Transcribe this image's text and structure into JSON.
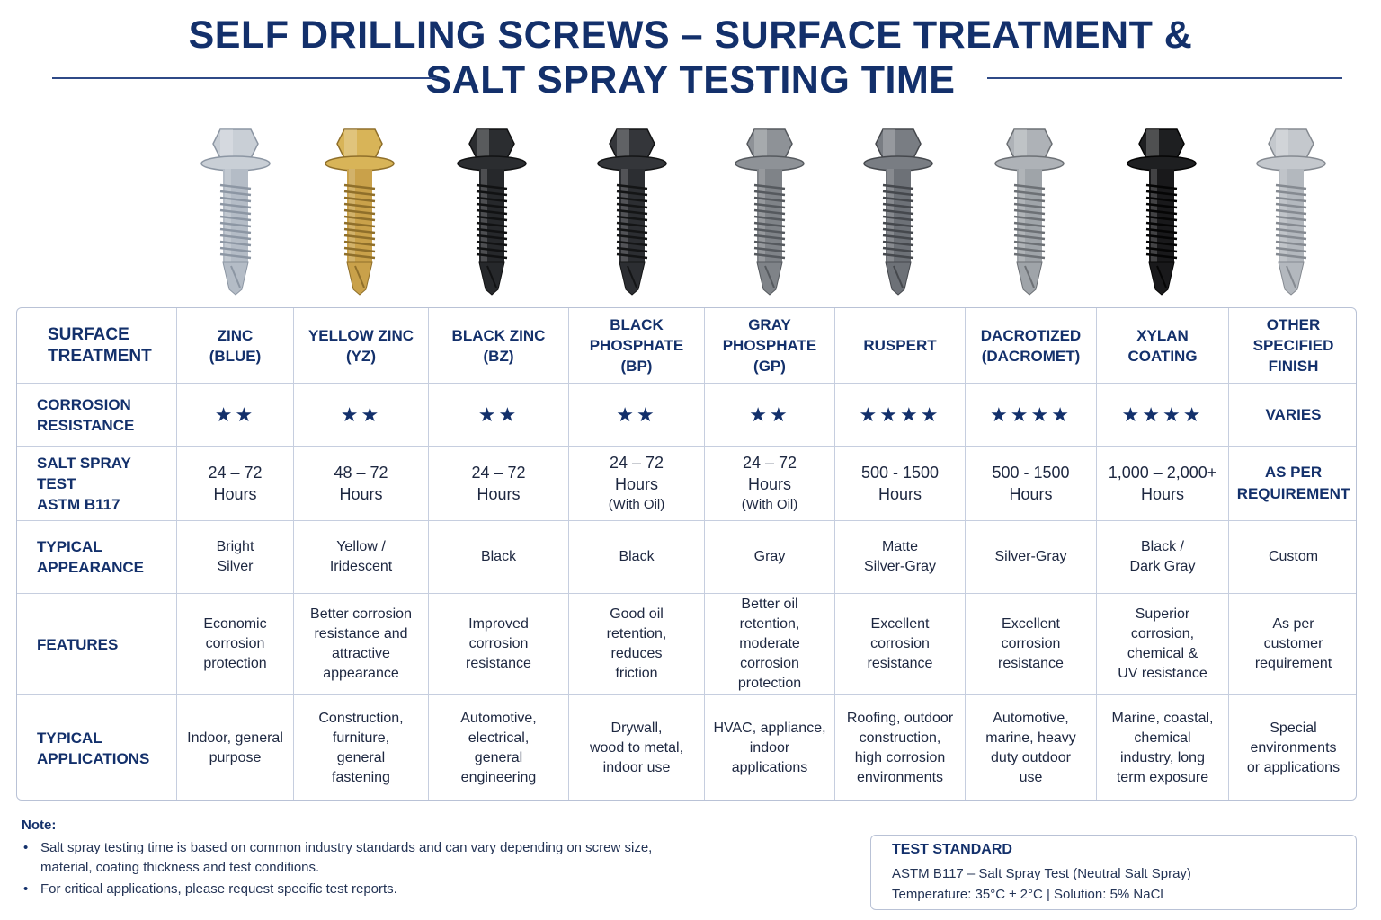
{
  "title": {
    "line1": "SELF DRILLING SCREWS – SURFACE TREATMENT &",
    "line2": "SALT SPRAY TESTING TIME"
  },
  "screws": [
    {
      "name": "zinc-blue",
      "head": "#c9cfd6",
      "shank": "#b4bcc6",
      "shade": "#8c96a3"
    },
    {
      "name": "yellow-zinc",
      "head": "#d8b458",
      "shank": "#c9a14a",
      "shade": "#8f6f2a"
    },
    {
      "name": "black-zinc",
      "head": "#2b2d30",
      "shank": "#26282b",
      "shade": "#111213"
    },
    {
      "name": "black-phosphate",
      "head": "#34363a",
      "shank": "#2c2e32",
      "shade": "#141516"
    },
    {
      "name": "gray-phosphate",
      "head": "#8e9297",
      "shank": "#7f8388",
      "shade": "#55595e"
    },
    {
      "name": "ruspert",
      "head": "#797d83",
      "shank": "#6d7177",
      "shade": "#45484d"
    },
    {
      "name": "dacrotized",
      "head": "#aeb2b7",
      "shank": "#9fa4a9",
      "shade": "#6c7075"
    },
    {
      "name": "xylan",
      "head": "#1e1f21",
      "shank": "#19191b",
      "shade": "#050505"
    },
    {
      "name": "other",
      "head": "#c4c8cd",
      "shank": "#b3b8be",
      "shade": "#858a91"
    }
  ],
  "table": {
    "header": {
      "label": "SURFACE\nTREATMENT",
      "columns": [
        "ZINC\n(BLUE)",
        "YELLOW ZINC\n(YZ)",
        "BLACK ZINC\n(BZ)",
        "BLACK\nPHOSPHATE\n(BP)",
        "GRAY\nPHOSPHATE\n(GP)",
        "RUSPERT",
        "DACROTIZED\n(DACROMET)",
        "XYLAN\nCOATING",
        "OTHER\nSPECIFIED\nFINISH"
      ]
    },
    "corrosion": {
      "label": "CORROSION\nRESISTANCE",
      "values": [
        "★★",
        "★★",
        "★★",
        "★★",
        "★★",
        "★★★★",
        "★★★★",
        "★★★★",
        "VARIES"
      ]
    },
    "salt": {
      "label": "SALT SPRAY TEST\nASTM B117",
      "values": [
        {
          "main": "24 – 72\nHours",
          "sub": ""
        },
        {
          "main": "48 –  72\nHours",
          "sub": ""
        },
        {
          "main": "24 – 72\nHours",
          "sub": ""
        },
        {
          "main": "24 – 72\nHours",
          "sub": "(With Oil)"
        },
        {
          "main": "24 – 72\nHours",
          "sub": "(With Oil)"
        },
        {
          "main": "500 - 1500\nHours",
          "sub": ""
        },
        {
          "main": "500 - 1500\nHours",
          "sub": ""
        },
        {
          "main": "1,000 – 2,000+\nHours",
          "sub": ""
        },
        {
          "main": "AS PER\nREQUIREMENT",
          "sub": ""
        }
      ]
    },
    "appearance": {
      "label": "TYPICAL\nAPPEARANCE",
      "values": [
        "Bright\nSilver",
        "Yellow /\nIridescent",
        "Black",
        "Black",
        "Gray",
        "Matte\nSilver-Gray",
        "Silver-Gray",
        "Black /\nDark Gray",
        "Custom"
      ]
    },
    "features": {
      "label": "FEATURES",
      "values": [
        "Economic\ncorrosion\nprotection",
        "Better corrosion\nresistance and\nattractive\nappearance",
        "Improved\ncorrosion\nresistance",
        "Good oil\nretention,\nreduces\nfriction",
        "Better oil\nretention,\nmoderate\ncorrosion\nprotection",
        "Excellent\ncorrosion\nresistance",
        "Excellent\ncorrosion\nresistance",
        "Superior\ncorrosion,\nchemical &\nUV resistance",
        "As per\ncustomer\nrequirement"
      ]
    },
    "applications": {
      "label": "TYPICAL\nAPPLICATIONS",
      "values": [
        "Indoor, general\npurpose",
        "Construction,\nfurniture,\ngeneral\nfastening",
        "Automotive,\nelectrical,\ngeneral\nengineering",
        "Drywall,\nwood to metal,\nindoor use",
        "HVAC, appliance,\nindoor\napplications",
        "Roofing, outdoor\nconstruction,\nhigh corrosion\nenvironments",
        "Automotive,\nmarine, heavy\nduty outdoor\nuse",
        "Marine, coastal,\nchemical\nindustry, long\nterm exposure",
        "Special\nenvironments\nor applications"
      ]
    }
  },
  "note": {
    "title": "Note:",
    "bullet": "•",
    "items": [
      "Salt spray testing time is based on common industry standards and can vary depending on screw size,\nmaterial, coating thickness and test conditions.",
      "For critical applications, please request specific test reports."
    ]
  },
  "test_standard": {
    "title": "TEST STANDARD",
    "line1": "ASTM B117 – Salt Spray Test (Neutral Salt Spray)",
    "line2": "Temperature: 35°C ± 2°C  |  Solution: 5% NaCl"
  }
}
